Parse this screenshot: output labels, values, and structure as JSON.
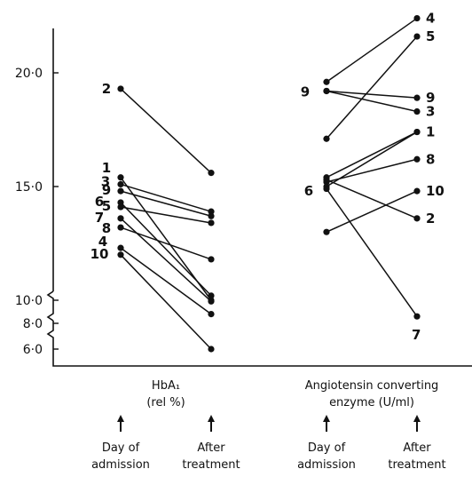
{
  "chart_data": {
    "type": "line",
    "title": "",
    "xlabel": "",
    "ylabel": "",
    "ylim": [
      5,
      22.5
    ],
    "yticks": [
      {
        "label": "20·0",
        "value": 20
      },
      {
        "label": "15·0",
        "value": 15
      },
      {
        "label": "10·0",
        "value": 10
      },
      {
        "label": "8·0",
        "value": 8
      },
      {
        "label": "6·0",
        "value": 6
      }
    ],
    "axis_break": "between 10·0 and 6·0",
    "groups": [
      {
        "label_lines": [
          "HbA₁",
          "(rel %)"
        ],
        "time_points": [
          {
            "lines": [
              "Day of",
              "admission"
            ]
          },
          {
            "lines": [
              "After",
              "treatment"
            ]
          }
        ],
        "patients": [
          {
            "label": "2",
            "values": [
              19.3,
              15.6
            ]
          },
          {
            "label": "1",
            "values": [
              15.4,
              10.0
            ]
          },
          {
            "label": "3",
            "values": [
              15.1,
              13.9
            ]
          },
          {
            "label": "9",
            "values": [
              14.8,
              13.7
            ]
          },
          {
            "label": "6",
            "values": [
              14.3,
              10.2
            ]
          },
          {
            "label": "5",
            "values": [
              14.1,
              13.4
            ]
          },
          {
            "label": "7",
            "values": [
              13.6,
              9.9
            ]
          },
          {
            "label": "8",
            "values": [
              13.2,
              11.8
            ]
          },
          {
            "label": "4",
            "values": [
              12.3,
              8.8
            ]
          },
          {
            "label": "10",
            "values": [
              12.0,
              6.0
            ]
          }
        ]
      },
      {
        "label_lines": [
          "Angiotensin converting",
          "enzyme (U/ml)"
        ],
        "time_points": [
          {
            "lines": [
              "Day of",
              "admission"
            ]
          },
          {
            "lines": [
              "After",
              "treatment"
            ]
          }
        ],
        "patients": [
          {
            "label": "4",
            "values": [
              19.6,
              22.4
            ]
          },
          {
            "label": "5",
            "values": [
              17.1,
              21.6
            ]
          },
          {
            "label": "9",
            "values": [
              19.2,
              18.9
            ]
          },
          {
            "label": "3",
            "values": [
              19.2,
              18.3
            ]
          },
          {
            "label": "1",
            "values": [
              15.4,
              17.4
            ]
          },
          {
            "label": "8",
            "values": [
              15.2,
              16.2
            ]
          },
          {
            "label": "6",
            "values": [
              15.0,
              17.4
            ]
          },
          {
            "label": "10",
            "values": [
              13.0,
              14.8
            ]
          },
          {
            "label": "2",
            "values": [
              15.3,
              13.6
            ]
          },
          {
            "label": "7",
            "values": [
              14.9,
              8.6
            ]
          }
        ]
      }
    ]
  }
}
